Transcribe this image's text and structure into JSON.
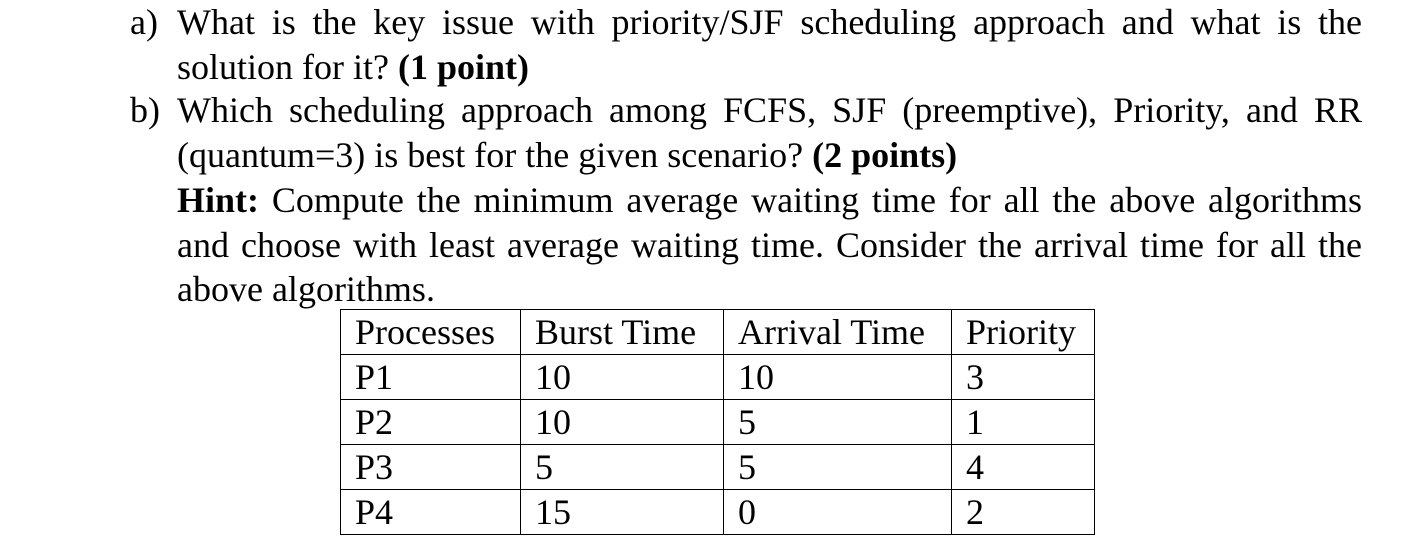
{
  "questions": {
    "a": {
      "marker": "a)",
      "text": "What is the key issue with priority/SJF scheduling approach and what is the solution for it?",
      "points": "(1 point)"
    },
    "b": {
      "marker": "b)",
      "text": "Which scheduling approach among FCFS, SJF (preemptive), Priority, and RR (quantum=3) is best for the given scenario?",
      "points": "(2 points)"
    }
  },
  "hint": {
    "label": "Hint:",
    "text": "Compute the minimum average waiting time for all the above algorithms and choose with least average waiting time. Consider the arrival time for all the above algorithms."
  },
  "table": {
    "headers": [
      "Processes",
      "Burst Time",
      "Arrival Time",
      "Priority"
    ],
    "rows": [
      [
        "P1",
        "10",
        "10",
        "3"
      ],
      [
        "P2",
        "10",
        "5",
        "1"
      ],
      [
        "P3",
        "5",
        "5",
        "4"
      ],
      [
        "P4",
        "15",
        "0",
        "2"
      ]
    ]
  }
}
